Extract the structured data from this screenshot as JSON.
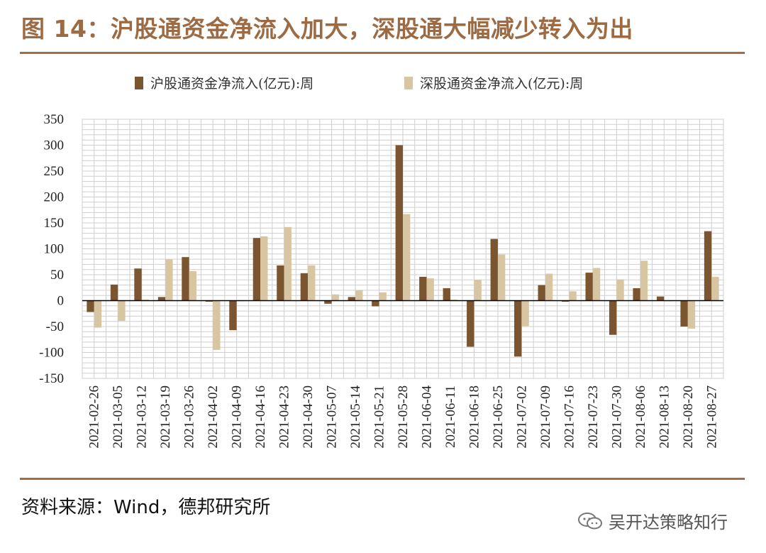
{
  "header": {
    "title": "图 14：沪股通资金净流入加大，深股通大幅减少转入为出"
  },
  "footer": {
    "source": "资料来源：Wind，德邦研究所",
    "watermark": "吴开达策略知行",
    "watermark_icon": "wechat-icon"
  },
  "colors": {
    "series1": "#7b5530",
    "series2": "#d8c6a3",
    "grid": "#cfcfcf",
    "accent": "#a06d47"
  },
  "chart_data": {
    "type": "bar",
    "title": "",
    "xlabel": "",
    "ylabel": "",
    "ylim": [
      -150,
      350
    ],
    "yticks": [
      350,
      300,
      250,
      200,
      150,
      100,
      50,
      0,
      -50,
      -100,
      -150
    ],
    "grid": true,
    "legend_position": "top",
    "categories": [
      "2021-02-26",
      "2021-03-05",
      "2021-03-12",
      "2021-03-19",
      "2021-03-26",
      "2021-04-02",
      "2021-04-09",
      "2021-04-16",
      "2021-04-23",
      "2021-04-30",
      "2021-05-07",
      "2021-05-14",
      "2021-05-21",
      "2021-05-28",
      "2021-06-04",
      "2021-06-11",
      "2021-06-18",
      "2021-06-25",
      "2021-07-02",
      "2021-07-09",
      "2021-07-16",
      "2021-07-23",
      "2021-07-30",
      "2021-08-06",
      "2021-08-13",
      "2021-08-20",
      "2021-08-27"
    ],
    "series": [
      {
        "name": "沪股通资金净流入(亿元):周",
        "values": [
          -22,
          31,
          62,
          7,
          84,
          -2,
          -57,
          121,
          68,
          53,
          -6,
          7,
          -11,
          300,
          46,
          24,
          -89,
          119,
          -108,
          30,
          -2,
          54,
          -66,
          24,
          8,
          -50,
          134
        ]
      },
      {
        "name": "深股通资金净流入(亿元):周",
        "values": [
          -52,
          -39,
          2,
          80,
          57,
          -95,
          0,
          124,
          142,
          68,
          12,
          20,
          16,
          167,
          43,
          2,
          40,
          89,
          -49,
          52,
          18,
          63,
          41,
          77,
          0,
          -54,
          46
        ]
      }
    ]
  }
}
